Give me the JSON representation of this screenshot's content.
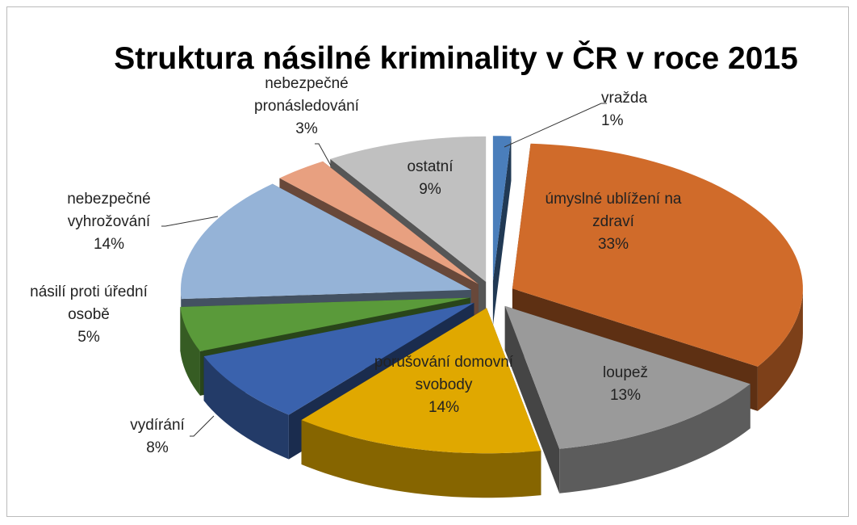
{
  "chart_data": {
    "type": "pie",
    "title": "Struktura násilné kriminality v ČR v roce 2015",
    "categories": [
      "vražda",
      "úmyslné ublížení na zdraví",
      "loupež",
      "porušování domovní svobody",
      "vydírání",
      "násilí proti úřední osobě",
      "nebezpečné vyhrožování",
      "nebezpečné pronásledování",
      "ostatní"
    ],
    "values": [
      1,
      33,
      13,
      14,
      8,
      5,
      14,
      3,
      9
    ],
    "value_labels": [
      "1%",
      "33%",
      "13%",
      "14%",
      "8%",
      "5%",
      "14%",
      "3%",
      "9%"
    ],
    "colors": [
      "#4a7ebb",
      "#d06b2a",
      "#9a9a9a",
      "#e0a800",
      "#3a62ad",
      "#5a9a3a",
      "#95b3d7",
      "#e8a080",
      "#c0c0c0"
    ]
  }
}
